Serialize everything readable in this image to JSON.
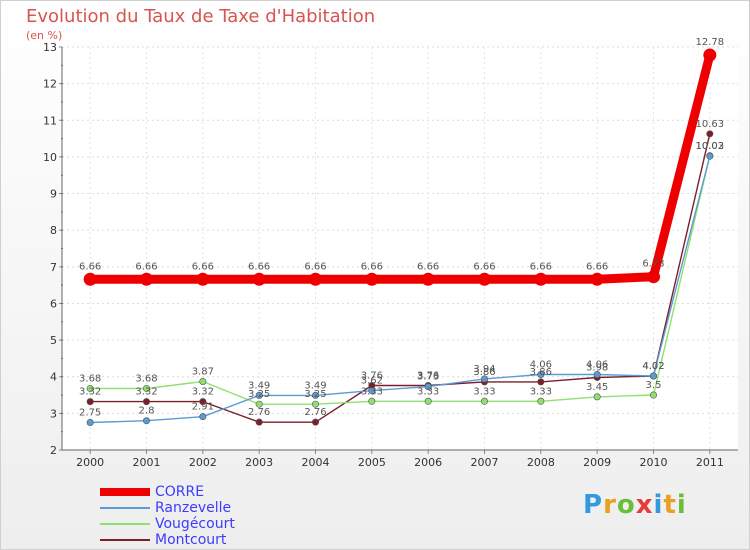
{
  "chart_data": {
    "type": "line",
    "title": "Evolution du Taux de Taxe d'Habitation",
    "ylabel": "(en %)",
    "xlabel": "",
    "ylim": [
      2,
      13
    ],
    "yticks": [
      "2",
      "3",
      "4",
      "5",
      "6",
      "7",
      "8",
      "9",
      "10",
      "11",
      "12",
      "13"
    ],
    "categories": [
      "2000",
      "2001",
      "2002",
      "2003",
      "2004",
      "2005",
      "2006",
      "2007",
      "2008",
      "2009",
      "2010",
      "2011"
    ],
    "series": [
      {
        "name": "CORRE",
        "color": "#ee0000",
        "values": [
          6.66,
          6.66,
          6.66,
          6.66,
          6.66,
          6.66,
          6.66,
          6.66,
          6.66,
          6.66,
          6.73,
          12.78
        ],
        "labels": [
          "6.66",
          "6.66",
          "6.66",
          "6.66",
          "6.66",
          "6.66",
          "6.66",
          "6.66",
          "6.66",
          "6.66",
          "6.73",
          "12.78"
        ]
      },
      {
        "name": "Ranzevelle",
        "color": "#5b9bd5",
        "values": [
          2.75,
          2.8,
          2.91,
          3.49,
          3.49,
          3.62,
          3.73,
          3.94,
          4.06,
          4.06,
          4.02,
          10.02
        ],
        "labels": [
          "2.75",
          "2.8",
          "2.91",
          "3.49",
          "3.49",
          "3.62",
          "3.73",
          "3.94",
          "4.06",
          "4.06",
          "4.02",
          "10.02"
        ]
      },
      {
        "name": "Vougécourt",
        "color": "#90e070",
        "values": [
          3.68,
          3.68,
          3.87,
          3.25,
          3.25,
          3.33,
          3.33,
          3.33,
          3.33,
          3.45,
          3.5,
          10.03
        ],
        "labels": [
          "3.68",
          "3.68",
          "3.87",
          "3.25",
          "3.25",
          "3.33",
          "3.33",
          "3.33",
          "3.33",
          "3.45",
          "3.5",
          "10.03"
        ]
      },
      {
        "name": "Montcourt",
        "color": "#7b1f2b",
        "values": [
          3.32,
          3.32,
          3.32,
          2.76,
          2.76,
          3.76,
          3.76,
          3.86,
          3.86,
          3.98,
          4.02,
          10.63
        ],
        "labels": [
          "3.32",
          "3.32",
          "3.32",
          "2.76",
          "2.76",
          "3.76",
          "3.76",
          "3.86",
          "3.86",
          "3.98",
          "4.02",
          "10.63"
        ]
      }
    ]
  },
  "legend": [
    "CORRE",
    "Ranzevelle",
    "Vougécourt",
    "Montcourt"
  ],
  "logo": {
    "letters": [
      "P",
      "r",
      "o",
      "x",
      "i",
      "t",
      "i"
    ],
    "colors": [
      "#3399dd",
      "#e8a020",
      "#6abe3a",
      "#e83a3a",
      "#3399dd",
      "#e8a020",
      "#6abe3a"
    ]
  }
}
